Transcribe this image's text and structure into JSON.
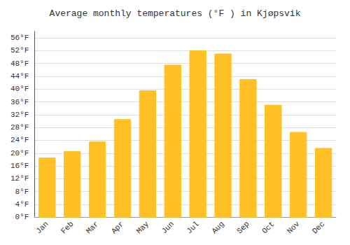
{
  "chart_data": {
    "type": "bar",
    "title": "Average monthly temperatures (°F ) in Kjøpsvik",
    "categories": [
      "Jan",
      "Feb",
      "Mar",
      "Apr",
      "May",
      "Jun",
      "Jul",
      "Aug",
      "Sep",
      "Oct",
      "Nov",
      "Dec"
    ],
    "values": [
      18.5,
      20.5,
      23.5,
      30.5,
      39.5,
      47.5,
      52.0,
      51.0,
      43.0,
      35.0,
      26.5,
      21.5
    ],
    "color": "#FFC125",
    "ylim": [
      0,
      58
    ],
    "yticks": [
      {
        "value": 0,
        "label": "0°F"
      },
      {
        "value": 4,
        "label": "4°F"
      },
      {
        "value": 8,
        "label": "8°F"
      },
      {
        "value": 12,
        "label": "12°F"
      },
      {
        "value": 16,
        "label": "16°F"
      },
      {
        "value": 20,
        "label": "20°F"
      },
      {
        "value": 24,
        "label": "24°F"
      },
      {
        "value": 28,
        "label": "28°F"
      },
      {
        "value": 32,
        "label": "32°F"
      },
      {
        "value": 36,
        "label": "36°F"
      },
      {
        "value": 40,
        "label": "40°F"
      },
      {
        "value": 44,
        "label": "44°F"
      },
      {
        "value": 48,
        "label": "48°F"
      },
      {
        "value": 52,
        "label": "52°F"
      },
      {
        "value": 56,
        "label": "56°F"
      }
    ],
    "grid": true
  }
}
